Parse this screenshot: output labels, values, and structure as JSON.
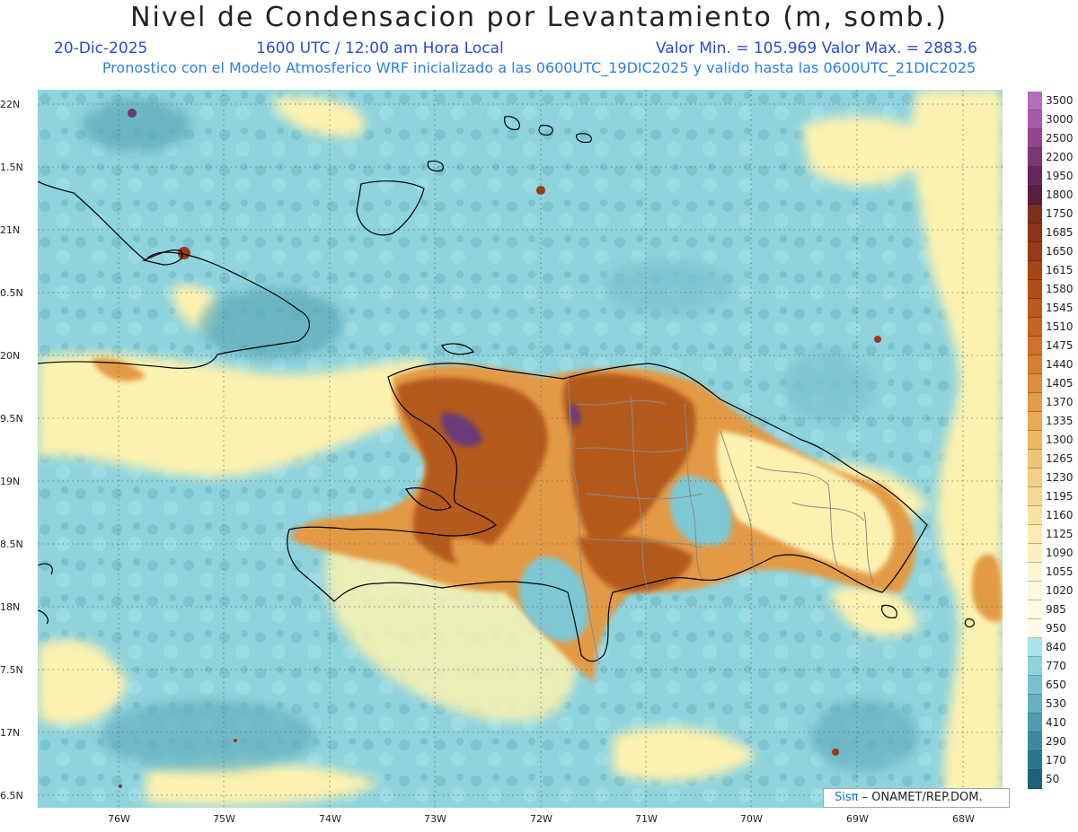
{
  "header": {
    "title": "Nivel de Condensacion por Levantamiento (m, somb.)",
    "date": "20-Dic-2025",
    "time": "1600 UTC / 12:00 am Hora Local",
    "minmax": "Valor Min. = 105.969  Valor Max. = 2883.6",
    "forecast": "Pronostico con el Modelo Atmosferico WRF inicializado a las 0600UTC_19DIC2025 y valido hasta las  0600UTC_21DIC2025"
  },
  "axes": {
    "lat_labels": [
      "22N",
      "1.5N",
      "21N",
      "0.5N",
      "20N",
      "9.5N",
      "19N",
      "8.5N",
      "18N",
      "7.5N",
      "17N",
      "6.5N"
    ],
    "lon_labels": [
      "76W",
      "75W",
      "74W",
      "73W",
      "72W",
      "71W",
      "70W",
      "69W",
      "68W"
    ]
  },
  "credit": {
    "sis": "Sisπ",
    "org": "– ONAMET/REP.DOM."
  },
  "colorbar": {
    "labels": [
      "3500",
      "3000",
      "2500",
      "2200",
      "1950",
      "1800",
      "1750",
      "1685",
      "1650",
      "1615",
      "1580",
      "1545",
      "1510",
      "1475",
      "1440",
      "1405",
      "1370",
      "1335",
      "1300",
      "1265",
      "1230",
      "1195",
      "1160",
      "1125",
      "1090",
      "1055",
      "1020",
      "985",
      "950",
      "840",
      "770",
      "650",
      "530",
      "410",
      "290",
      "170",
      "50"
    ],
    "colors": [
      "#b86cc0",
      "#a85aac",
      "#93468f",
      "#7d3573",
      "#69285c",
      "#5a1e3f",
      "#7e2e1c",
      "#8f3418",
      "#9a3b17",
      "#a64417",
      "#b04e18",
      "#bb5a1c",
      "#c56521",
      "#cf7228",
      "#d77f30",
      "#df8d39",
      "#e59b44",
      "#eaa952",
      "#eeb862",
      "#f0c472",
      "#f3cf82",
      "#f5d992",
      "#f7e3a2",
      "#f9ebb3",
      "#faf1c2",
      "#fcf6d0",
      "#fef9dc",
      "#fdfbe2",
      "#fffbe6",
      "#a8e4ea",
      "#8fd3dc",
      "#78c2cf",
      "#63b0c0",
      "#4f9db0",
      "#3d8a9f",
      "#2c778d",
      "#1c647a"
    ]
  },
  "map": {
    "region": "Hispaniola / Caribe",
    "colors": {
      "ocean_low": "#7ec8d4",
      "ocean_mid": "#9adbe2",
      "ocean_deep": "#5aa9b8",
      "yellow": "#fcf2b0",
      "orange": "#e39a45",
      "brown": "#b45a1e",
      "purple": "#6b3a78",
      "coast": "#000000",
      "border": "#8a8a8a"
    }
  }
}
